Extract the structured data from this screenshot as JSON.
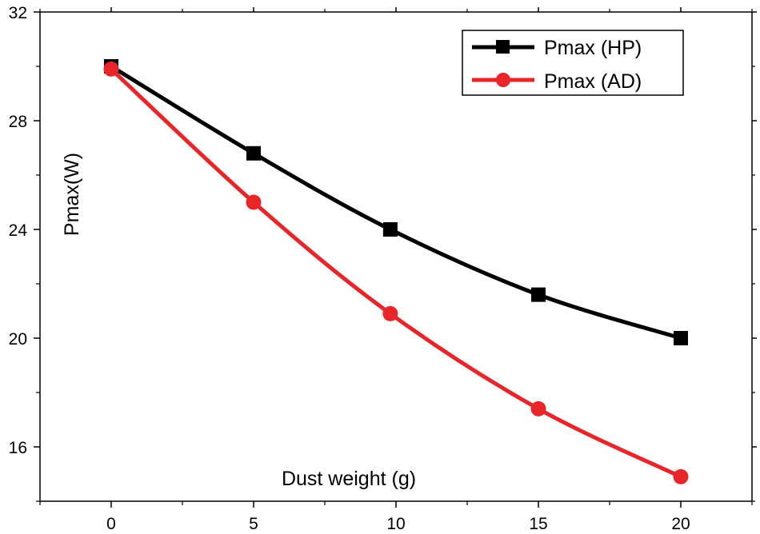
{
  "chart_data": {
    "type": "line",
    "title": "",
    "xlabel": "Dust weight (g)",
    "ylabel": "Pmax(W)",
    "xlim": [
      -2.5,
      22.5
    ],
    "ylim": [
      14,
      32
    ],
    "x_ticks": [
      0,
      5,
      10,
      15,
      20
    ],
    "y_ticks": [
      16,
      20,
      24,
      28,
      32
    ],
    "legend_position": "top-right",
    "grid": false,
    "series": [
      {
        "name": "Pmax (HP)",
        "color": "#000000",
        "marker": "square",
        "x": [
          0,
          5,
          9.8,
          15,
          20
        ],
        "y": [
          30.0,
          26.8,
          24.0,
          21.6,
          20.0
        ]
      },
      {
        "name": "Pmax (AD)",
        "color": "#e8262a",
        "marker": "circle",
        "x": [
          0,
          5,
          9.8,
          15,
          20
        ],
        "y": [
          29.9,
          25.0,
          20.9,
          17.4,
          14.9
        ]
      }
    ]
  }
}
